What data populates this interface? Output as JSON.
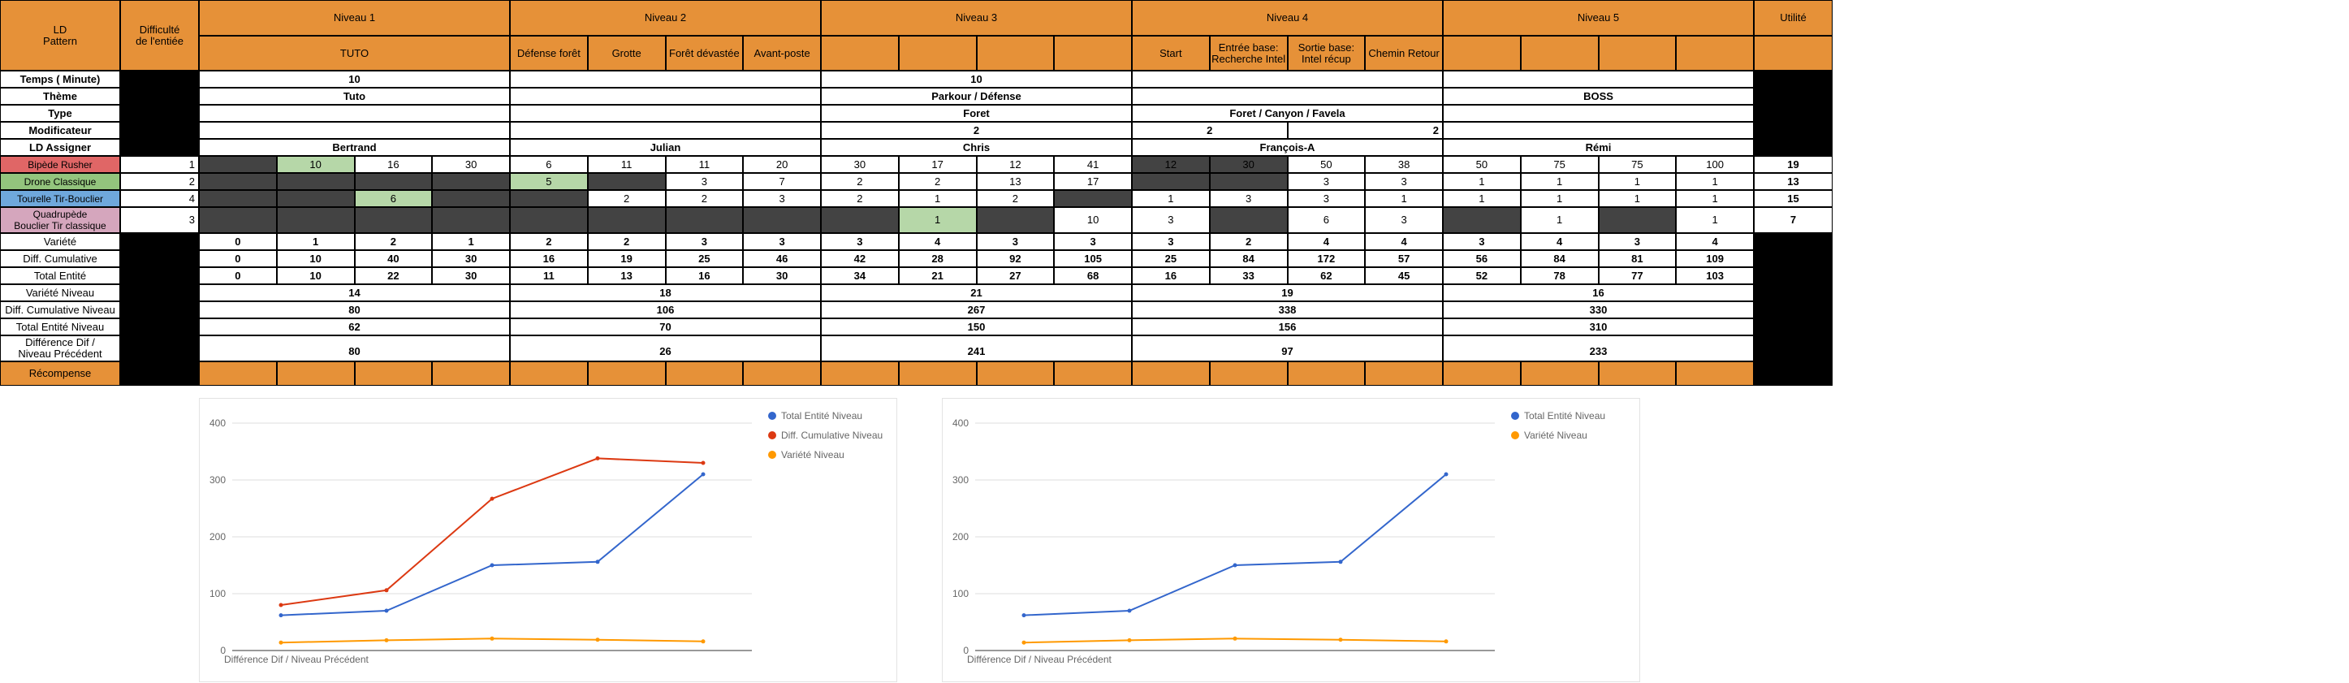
{
  "header": {
    "ld_pattern": "LD\nPattern",
    "difficulty_entry": "Difficulté\nde l'entiée",
    "levels": [
      "Niveau 1",
      "Niveau 2",
      "Niveau 3",
      "Niveau 4",
      "Niveau 5"
    ],
    "utility": "Utilité",
    "sublabels": [
      "TUTO",
      "",
      "",
      "",
      "Défense forêt",
      "Grotte",
      "Forêt dévastée",
      "Avant-poste",
      "",
      "",
      "",
      "",
      "Start",
      "Entrée base:\nRecherche Intel",
      "Sortie base:\nIntel récup",
      "Chemin Retour",
      "",
      "",
      "",
      ""
    ]
  },
  "rows": {
    "time": {
      "label": "Temps ( Minute)",
      "values": [
        "10",
        "",
        "10",
        "",
        ""
      ]
    },
    "theme": {
      "label": "Thème",
      "values": [
        "Tuto",
        "",
        "Parkour / Défense",
        "",
        "BOSS"
      ]
    },
    "type": {
      "label": "Type",
      "values": [
        "",
        "",
        "Foret",
        "Foret / Canyon / Favela",
        ""
      ]
    },
    "modifier": {
      "label": "Modificateur",
      "values": [
        "",
        "",
        "2",
        "2",
        "2",
        ""
      ]
    },
    "assigner": {
      "label": "LD Assigner",
      "values": [
        "Bertrand",
        "Julian",
        "Chris",
        "François-A",
        "Rémi"
      ]
    }
  },
  "enemies": [
    {
      "name": "Bipède Rusher",
      "color": "#e06666",
      "difficulty": "1",
      "utility": "19",
      "cells": [
        "",
        "10",
        "16",
        "30",
        "6",
        "11",
        "11",
        "20",
        "30",
        "17",
        "12",
        "41",
        "12",
        "30",
        "50",
        "38",
        "50",
        "75",
        "75",
        "100"
      ]
    },
    {
      "name": "Drone Classique",
      "color": "#93c47d",
      "difficulty": "2",
      "utility": "13",
      "cells": [
        "",
        "",
        "",
        "",
        "5",
        "",
        "3",
        "7",
        "2",
        "2",
        "13",
        "17",
        "",
        "",
        "3",
        "3",
        "1",
        "1",
        "1",
        "1"
      ]
    },
    {
      "name": "Tourelle Tir-Bouclier",
      "color": "#6fa8dc",
      "difficulty": "4",
      "utility": "15",
      "cells": [
        "",
        "",
        "6",
        "",
        "",
        "2",
        "2",
        "3",
        "2",
        "1",
        "2",
        "",
        "1",
        "3",
        "3",
        "1",
        "1",
        "1",
        "1",
        "1"
      ]
    },
    {
      "name": "Quadrupède\nBouclier Tir classique",
      "color": "#d5a6bd",
      "difficulty": "3",
      "utility": "7",
      "cells": [
        "",
        "",
        "",
        "",
        "",
        "",
        "",
        "",
        "",
        "1",
        "",
        "10",
        "3",
        "",
        "6",
        "3",
        "",
        "1",
        "",
        "1"
      ]
    }
  ],
  "stats": [
    {
      "label": "Variété",
      "values": [
        "0",
        "1",
        "2",
        "1",
        "2",
        "2",
        "3",
        "3",
        "3",
        "4",
        "3",
        "3",
        "3",
        "2",
        "4",
        "4",
        "3",
        "4",
        "3",
        "4"
      ]
    },
    {
      "label": "Diff. Cumulative",
      "values": [
        "0",
        "10",
        "40",
        "30",
        "16",
        "19",
        "25",
        "46",
        "42",
        "28",
        "92",
        "105",
        "25",
        "84",
        "172",
        "57",
        "56",
        "84",
        "81",
        "109"
      ]
    },
    {
      "label": "Total Entité",
      "values": [
        "0",
        "10",
        "22",
        "30",
        "11",
        "13",
        "16",
        "30",
        "34",
        "21",
        "27",
        "68",
        "16",
        "33",
        "62",
        "45",
        "52",
        "78",
        "77",
        "103"
      ]
    }
  ],
  "level_stats": [
    {
      "label": "Variété Niveau",
      "values": [
        "14",
        "18",
        "21",
        "19",
        "16"
      ]
    },
    {
      "label": "Diff. Cumulative Niveau",
      "values": [
        "80",
        "106",
        "267",
        "338",
        "330"
      ]
    },
    {
      "label": "Total Entité Niveau",
      "values": [
        "62",
        "70",
        "150",
        "156",
        "310"
      ]
    },
    {
      "label": "Différence Dif /\nNiveau Précédent",
      "values": [
        "80",
        "26",
        "241",
        "97",
        "233"
      ]
    }
  ],
  "reward": {
    "label": "Récompense"
  },
  "chart_data": [
    {
      "type": "line",
      "xlabel": "Différence Dif / Niveau Précédent",
      "ylim": [
        0,
        400
      ],
      "yticks": [
        "0",
        "100",
        "200",
        "300",
        "400"
      ],
      "grid": true,
      "legend": "top-right",
      "series": [
        {
          "name": "Total Entité Niveau",
          "color": "#3366cc",
          "values": [
            62,
            70,
            150,
            156,
            310
          ]
        },
        {
          "name": "Diff. Cumulative Niveau",
          "color": "#dc3912",
          "values": [
            80,
            106,
            267,
            338,
            330
          ]
        },
        {
          "name": "Variété Niveau",
          "color": "#ff9900",
          "values": [
            14,
            18,
            21,
            19,
            16
          ]
        }
      ]
    },
    {
      "type": "line",
      "xlabel": "Différence Dif / Niveau Précédent",
      "ylim": [
        0,
        400
      ],
      "yticks": [
        "0",
        "100",
        "200",
        "300",
        "400"
      ],
      "grid": true,
      "legend": "top-right",
      "series": [
        {
          "name": "Total Entité Niveau",
          "color": "#3366cc",
          "values": [
            62,
            70,
            150,
            156,
            310
          ]
        },
        {
          "name": "Variété Niveau",
          "color": "#ff9900",
          "values": [
            14,
            18,
            21,
            19,
            16
          ]
        }
      ]
    }
  ]
}
